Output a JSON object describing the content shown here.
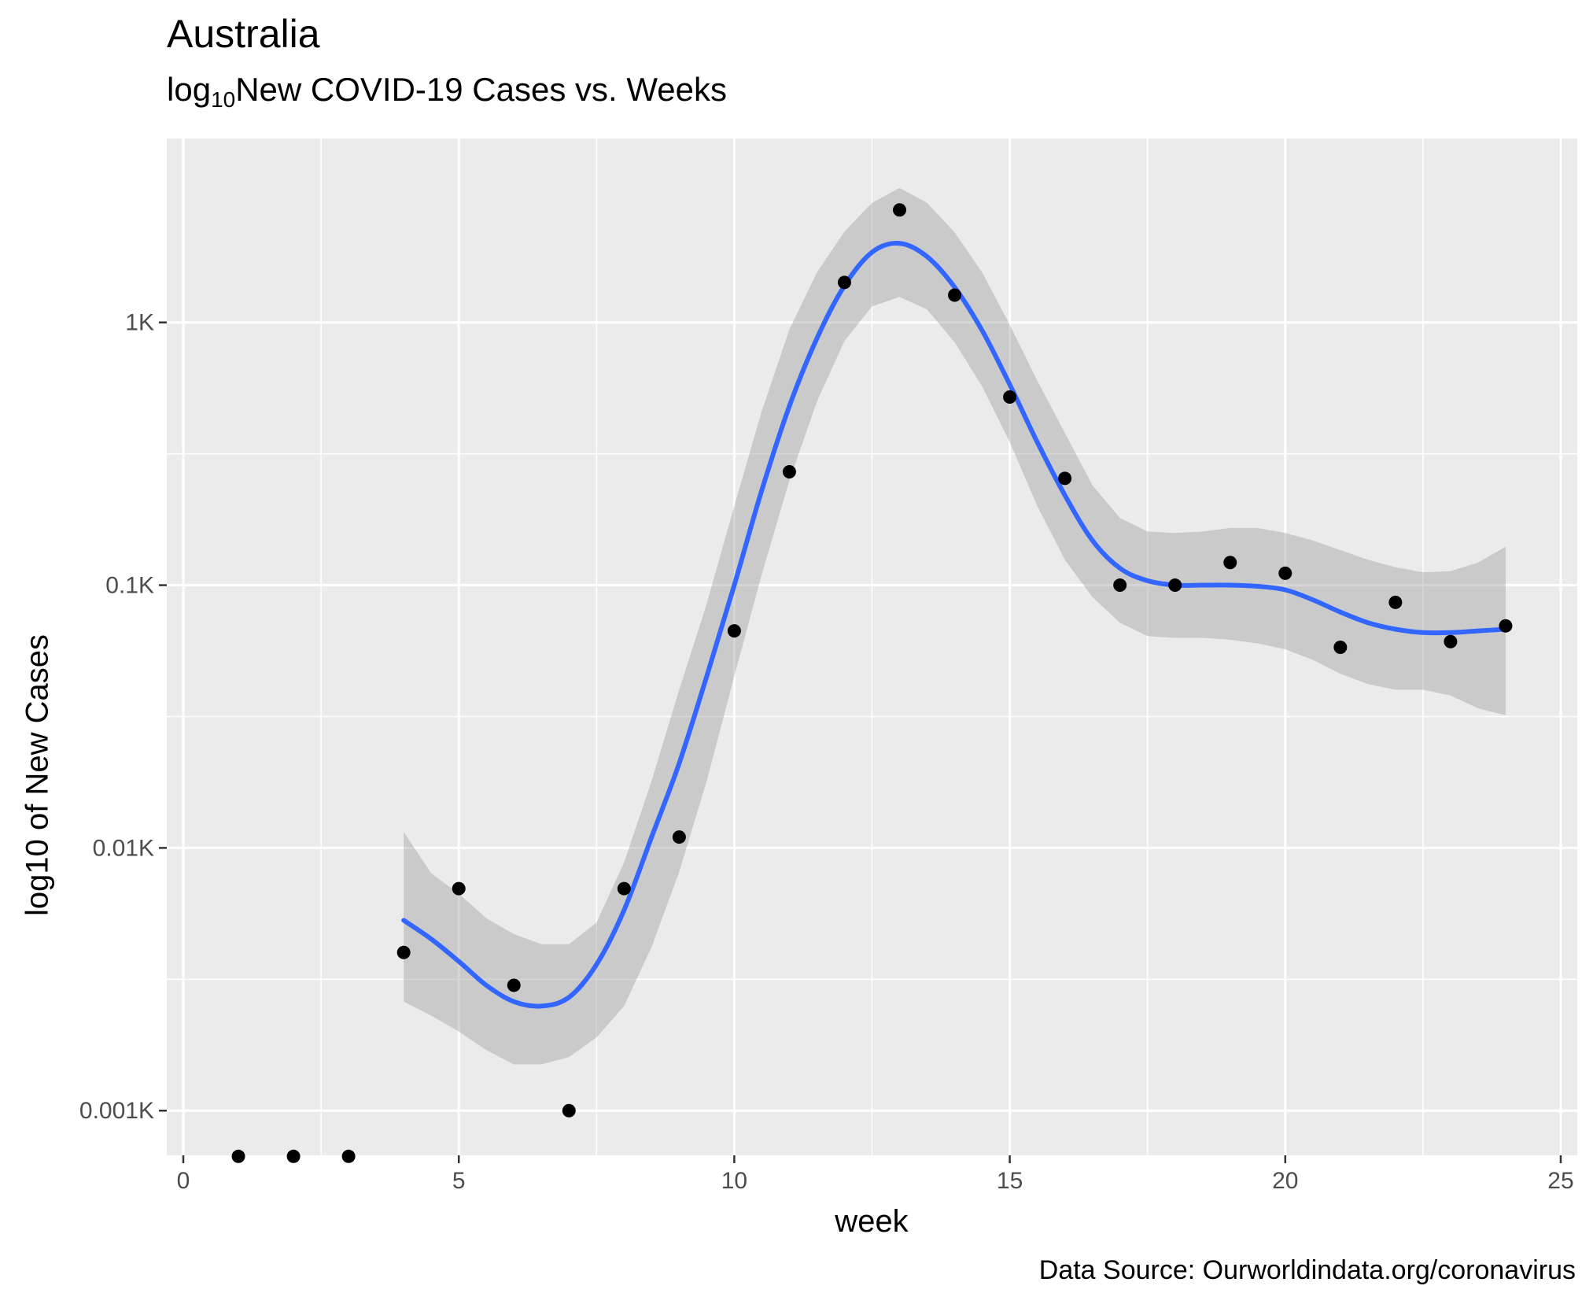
{
  "chart_data": {
    "type": "scatter",
    "title": "Australia",
    "subtitle_parts": {
      "pre": "log",
      "sub": "10",
      "post": "New COVID-19 Cases vs. Weeks"
    },
    "caption": "Data Source: Ourworldindata.org/coronavirus",
    "xlabel": "week",
    "ylabel": "log10 of New Cases",
    "xlim": [
      -0.3,
      25.3
    ],
    "ylim_log10": [
      -3.17,
      0.7
    ],
    "y_scale": "log10",
    "grid": true,
    "x_ticks": [
      {
        "value": 0,
        "label": "0"
      },
      {
        "value": 5,
        "label": "5"
      },
      {
        "value": 10,
        "label": "10"
      },
      {
        "value": 15,
        "label": "15"
      },
      {
        "value": 20,
        "label": "20"
      },
      {
        "value": 25,
        "label": "25"
      }
    ],
    "y_ticks": [
      {
        "value": 0.001,
        "label": "0.001K"
      },
      {
        "value": 0.01,
        "label": "0.01K"
      },
      {
        "value": 0.1,
        "label": "0.1K"
      },
      {
        "value": 1,
        "label": "1K"
      }
    ],
    "points": {
      "x": [
        1,
        2,
        3,
        4,
        5,
        6,
        7,
        8,
        9,
        10,
        11,
        12,
        13,
        14,
        15,
        16,
        17,
        18,
        19,
        20,
        21,
        22,
        23,
        24
      ],
      "y": [
        0.00067,
        0.00067,
        0.00067,
        0.004,
        0.007,
        0.003,
        0.001,
        0.007,
        0.011,
        0.067,
        0.27,
        1.42,
        2.68,
        1.27,
        0.52,
        0.255,
        0.1,
        0.1,
        0.122,
        0.111,
        0.058,
        0.086,
        0.061,
        0.07
      ]
    },
    "smooth": {
      "x": [
        4,
        4.5,
        5,
        5.5,
        6,
        6.5,
        7,
        7.5,
        8,
        8.5,
        9,
        9.5,
        10,
        10.5,
        11,
        11.5,
        12,
        12.5,
        13,
        13.5,
        14,
        14.5,
        15,
        15.5,
        16,
        16.5,
        17,
        17.5,
        18,
        18.5,
        19,
        19.5,
        20,
        20.5,
        21,
        21.5,
        22,
        22.5,
        23,
        23.5,
        24
      ],
      "y": [
        0.0053,
        0.0045,
        0.0037,
        0.003,
        0.0026,
        0.0025,
        0.0027,
        0.0036,
        0.0058,
        0.011,
        0.021,
        0.045,
        0.1,
        0.23,
        0.48,
        0.87,
        1.38,
        1.85,
        2.0,
        1.78,
        1.36,
        0.93,
        0.58,
        0.35,
        0.22,
        0.148,
        0.116,
        0.104,
        0.1,
        0.1,
        0.1,
        0.099,
        0.096,
        0.088,
        0.079,
        0.072,
        0.068,
        0.066,
        0.066,
        0.067,
        0.068
      ],
      "lower": [
        0.0026,
        0.0023,
        0.002,
        0.0017,
        0.0015,
        0.0015,
        0.0016,
        0.0019,
        0.0025,
        0.0042,
        0.0081,
        0.018,
        0.045,
        0.11,
        0.25,
        0.5,
        0.85,
        1.15,
        1.25,
        1.12,
        0.84,
        0.57,
        0.35,
        0.2,
        0.125,
        0.09,
        0.072,
        0.064,
        0.063,
        0.063,
        0.062,
        0.06,
        0.057,
        0.052,
        0.046,
        0.042,
        0.04,
        0.04,
        0.038,
        0.034,
        0.032
      ],
      "upper": [
        0.0115,
        0.008,
        0.0067,
        0.0054,
        0.0047,
        0.0043,
        0.0043,
        0.0052,
        0.0088,
        0.018,
        0.04,
        0.085,
        0.2,
        0.46,
        0.94,
        1.55,
        2.22,
        2.85,
        3.25,
        2.85,
        2.2,
        1.55,
        0.98,
        0.6,
        0.38,
        0.24,
        0.18,
        0.16,
        0.158,
        0.16,
        0.165,
        0.165,
        0.158,
        0.148,
        0.136,
        0.125,
        0.117,
        0.112,
        0.113,
        0.122,
        0.14
      ]
    }
  }
}
